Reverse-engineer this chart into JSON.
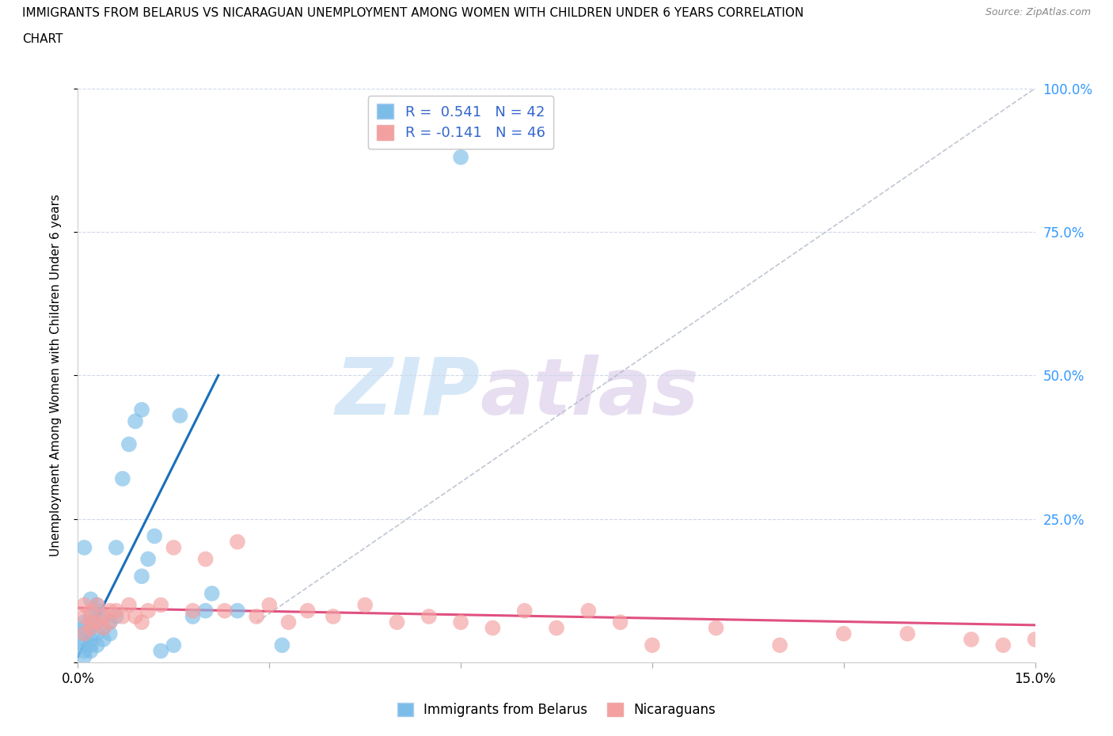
{
  "title_line1": "IMMIGRANTS FROM BELARUS VS NICARAGUAN UNEMPLOYMENT AMONG WOMEN WITH CHILDREN UNDER 6 YEARS CORRELATION",
  "title_line2": "CHART",
  "source": "Source: ZipAtlas.com",
  "ylabel": "Unemployment Among Women with Children Under 6 years",
  "xlim": [
    0.0,
    0.15
  ],
  "ylim": [
    0.0,
    1.0
  ],
  "xticks": [
    0.0,
    0.03,
    0.06,
    0.09,
    0.12,
    0.15
  ],
  "xticklabels_show": [
    "0.0%",
    "",
    "",
    "",
    "",
    "15.0%"
  ],
  "yticks_right": [
    0.0,
    0.25,
    0.5,
    0.75,
    1.0
  ],
  "yticklabels_right": [
    "",
    "25.0%",
    "50.0%",
    "75.0%",
    "100.0%"
  ],
  "color_blue": "#7bbde8",
  "color_pink": "#f4a0a0",
  "color_blue_line": "#1a6fba",
  "color_pink_line": "#e05080",
  "color_diag": "#b0b8c8",
  "legend_r_blue": "R =  0.541",
  "legend_n_blue": "N = 42",
  "legend_r_pink": "R = -0.141",
  "legend_n_pink": "N = 46",
  "watermark_zip": "ZIP",
  "watermark_atlas": "atlas",
  "blue_points_x": [
    0.001,
    0.001,
    0.001,
    0.001,
    0.001,
    0.001,
    0.001,
    0.002,
    0.002,
    0.002,
    0.002,
    0.002,
    0.003,
    0.003,
    0.003,
    0.003,
    0.004,
    0.004,
    0.004,
    0.005,
    0.005,
    0.006,
    0.006,
    0.007,
    0.008,
    0.009,
    0.01,
    0.012,
    0.013,
    0.015,
    0.018,
    0.02,
    0.025,
    0.032,
    0.021,
    0.016,
    0.01,
    0.011,
    0.003,
    0.002,
    0.001,
    0.06
  ],
  "blue_points_y": [
    0.04,
    0.05,
    0.06,
    0.03,
    0.07,
    0.02,
    0.01,
    0.04,
    0.06,
    0.08,
    0.03,
    0.02,
    0.05,
    0.07,
    0.09,
    0.03,
    0.06,
    0.08,
    0.04,
    0.07,
    0.05,
    0.2,
    0.08,
    0.32,
    0.38,
    0.42,
    0.44,
    0.22,
    0.02,
    0.03,
    0.08,
    0.09,
    0.09,
    0.03,
    0.12,
    0.43,
    0.15,
    0.18,
    0.1,
    0.11,
    0.2,
    0.88
  ],
  "pink_points_x": [
    0.001,
    0.001,
    0.001,
    0.002,
    0.002,
    0.002,
    0.003,
    0.003,
    0.004,
    0.004,
    0.005,
    0.005,
    0.006,
    0.007,
    0.008,
    0.009,
    0.01,
    0.011,
    0.013,
    0.015,
    0.018,
    0.02,
    0.023,
    0.025,
    0.028,
    0.03,
    0.033,
    0.036,
    0.04,
    0.045,
    0.05,
    0.055,
    0.06,
    0.065,
    0.07,
    0.075,
    0.08,
    0.085,
    0.09,
    0.1,
    0.11,
    0.12,
    0.13,
    0.14,
    0.145,
    0.15
  ],
  "pink_points_y": [
    0.05,
    0.08,
    0.1,
    0.06,
    0.09,
    0.07,
    0.07,
    0.1,
    0.08,
    0.06,
    0.09,
    0.07,
    0.09,
    0.08,
    0.1,
    0.08,
    0.07,
    0.09,
    0.1,
    0.2,
    0.09,
    0.18,
    0.09,
    0.21,
    0.08,
    0.1,
    0.07,
    0.09,
    0.08,
    0.1,
    0.07,
    0.08,
    0.07,
    0.06,
    0.09,
    0.06,
    0.09,
    0.07,
    0.03,
    0.06,
    0.03,
    0.05,
    0.05,
    0.04,
    0.03,
    0.04
  ],
  "blue_line_x": [
    0.0,
    0.022
  ],
  "blue_line_y": [
    0.01,
    0.5
  ],
  "pink_line_x": [
    0.0,
    0.15
  ],
  "pink_line_y": [
    0.095,
    0.065
  ],
  "diag_line_x": [
    0.028,
    0.15
  ],
  "diag_line_y": [
    0.07,
    1.0
  ]
}
